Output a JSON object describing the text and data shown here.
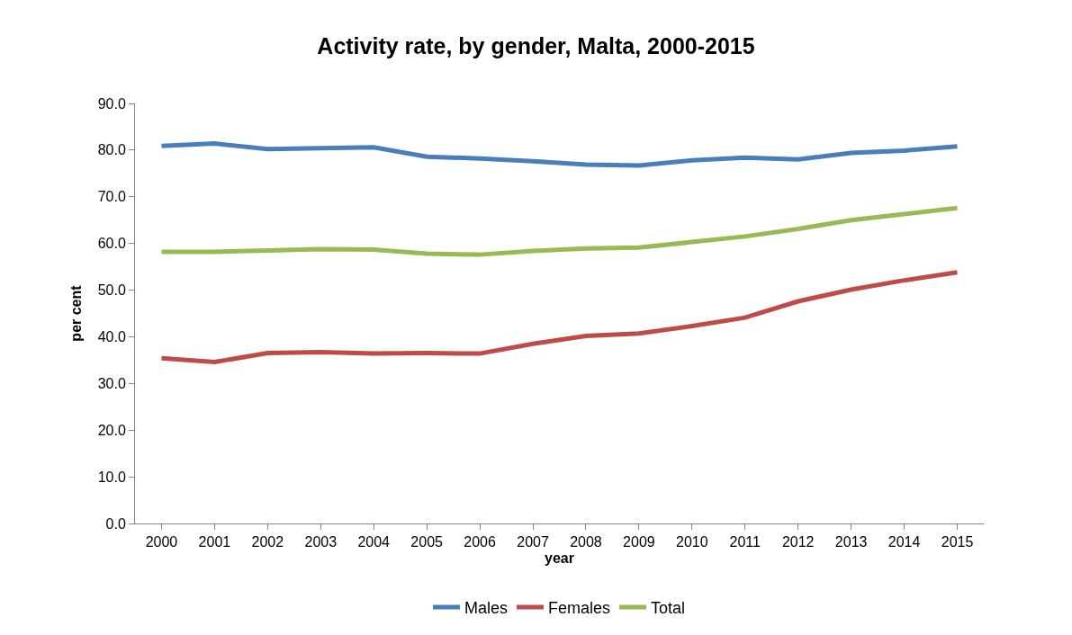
{
  "chart_data": {
    "type": "line",
    "title": "Activity rate, by gender, Malta, 2000-2015",
    "xlabel": "year",
    "ylabel": "per cent",
    "categories": [
      "2000",
      "2001",
      "2002",
      "2003",
      "2004",
      "2005",
      "2006",
      "2007",
      "2008",
      "2009",
      "2010",
      "2011",
      "2012",
      "2013",
      "2014",
      "2015"
    ],
    "series": [
      {
        "name": "Males",
        "color": "#4a7ebb",
        "values": [
          80.9,
          81.4,
          80.2,
          80.4,
          80.6,
          78.6,
          78.2,
          77.6,
          76.9,
          76.7,
          77.8,
          78.4,
          78.0,
          79.4,
          79.9,
          80.8
        ]
      },
      {
        "name": "Females",
        "color": "#be4b48",
        "values": [
          35.4,
          34.6,
          36.5,
          36.7,
          36.4,
          36.5,
          36.4,
          38.5,
          40.2,
          40.7,
          42.3,
          44.1,
          47.6,
          50.1,
          52.1,
          53.8
        ]
      },
      {
        "name": "Total",
        "color": "#98b954",
        "values": [
          58.2,
          58.2,
          58.5,
          58.8,
          58.7,
          57.8,
          57.6,
          58.4,
          58.9,
          59.1,
          60.3,
          61.5,
          63.1,
          65.0,
          66.3,
          67.6
        ]
      }
    ],
    "ylim": [
      0,
      90
    ],
    "yticks": [
      {
        "value": 0,
        "label": "0.0"
      },
      {
        "value": 10,
        "label": "10.0"
      },
      {
        "value": 20,
        "label": "20.0"
      },
      {
        "value": 30,
        "label": "30.0"
      },
      {
        "value": 40,
        "label": "40.0"
      },
      {
        "value": 50,
        "label": "50.0"
      },
      {
        "value": 60,
        "label": "60.0"
      },
      {
        "value": 70,
        "label": "70.0"
      },
      {
        "value": 80,
        "label": "80.0"
      },
      {
        "value": 90,
        "label": "90.0"
      }
    ],
    "grid": false,
    "legend": "bottom",
    "marker": "none",
    "line_style": "solid"
  }
}
